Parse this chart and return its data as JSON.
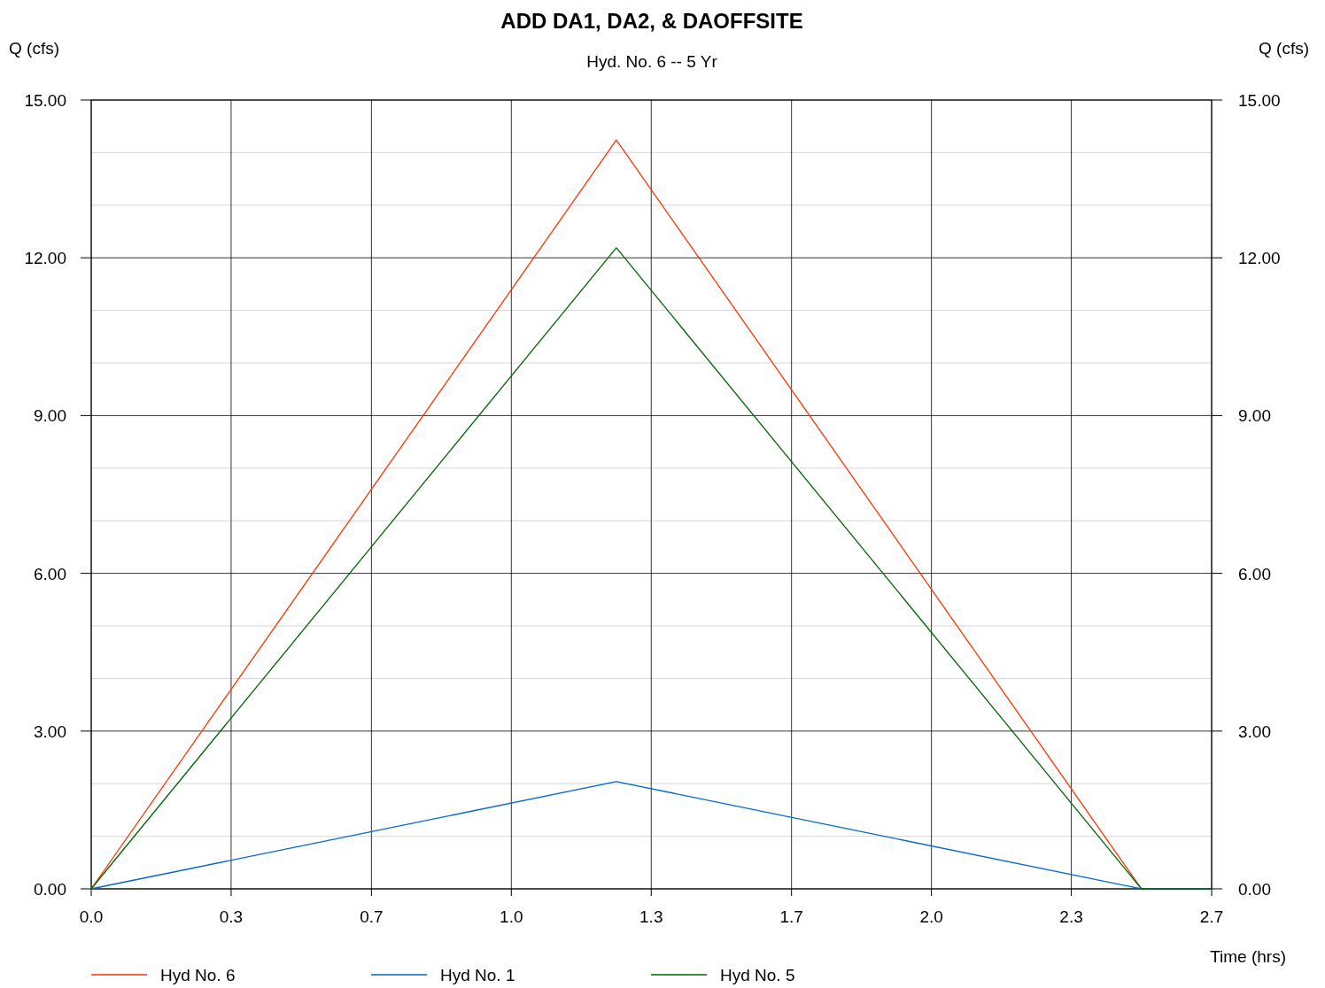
{
  "chart_data": {
    "type": "line",
    "title": "ADD DA1, DA2, & DAOFFSITE",
    "subtitle": "Hyd. No. 6 -- 5 Yr",
    "xlabel": "Time (hrs)",
    "ylabel": "Q (cfs)",
    "y2label": "Q (cfs)",
    "series": [
      {
        "name": "Hyd No. 6",
        "color": "#ff3300",
        "x": [
          0,
          1.25,
          2.5,
          2.667
        ],
        "values": [
          0,
          14.24,
          0,
          0
        ]
      },
      {
        "name": "Hyd No. 1",
        "color": "#0066cc",
        "x": [
          0,
          1.25,
          2.5,
          2.667
        ],
        "values": [
          0,
          2.04,
          0,
          0
        ]
      },
      {
        "name": "Hyd No. 5",
        "color": "#006600",
        "x": [
          0,
          1.25,
          2.5,
          2.667
        ],
        "values": [
          0,
          12.19,
          0,
          0
        ]
      }
    ],
    "xlim": [
      0,
      2.667
    ],
    "xticks": [
      {
        "value": 0,
        "label": "0.0"
      },
      {
        "value": 0.333,
        "label": "0.3"
      },
      {
        "value": 0.667,
        "label": "0.7"
      },
      {
        "value": 1,
        "label": "1.0"
      },
      {
        "value": 1.333,
        "label": "1.3"
      },
      {
        "value": 1.667,
        "label": "1.7"
      },
      {
        "value": 2,
        "label": "2.0"
      },
      {
        "value": 2.333,
        "label": "2.3"
      },
      {
        "value": 2.667,
        "label": "2.7"
      }
    ],
    "ylim": [
      0,
      15
    ],
    "yticks": [
      {
        "value": 0,
        "label": "0.00"
      },
      {
        "value": 1,
        "label": null
      },
      {
        "value": 2,
        "label": null
      },
      {
        "value": 3,
        "label": "3.00"
      },
      {
        "value": 4,
        "label": null
      },
      {
        "value": 5,
        "label": null
      },
      {
        "value": 6,
        "label": "6.00"
      },
      {
        "value": 7,
        "label": null
      },
      {
        "value": 8,
        "label": null
      },
      {
        "value": 9,
        "label": "9.00"
      },
      {
        "value": 10,
        "label": null
      },
      {
        "value": 11,
        "label": null
      },
      {
        "value": 12,
        "label": "12.00"
      },
      {
        "value": 13,
        "label": null
      },
      {
        "value": 14,
        "label": null
      },
      {
        "value": 15,
        "label": "15.00"
      }
    ],
    "y2lim": [
      0,
      15
    ],
    "y2ticks": [
      {
        "value": 0,
        "label": "0.00"
      },
      {
        "value": 3,
        "label": "3.00"
      },
      {
        "value": 6,
        "label": "6.00"
      },
      {
        "value": 9,
        "label": "9.00"
      },
      {
        "value": 12,
        "label": "12.00"
      },
      {
        "value": 15,
        "label": "15.00"
      }
    ],
    "grid": true,
    "legend": "bottom",
    "marker": "none",
    "line_style": "solid"
  }
}
